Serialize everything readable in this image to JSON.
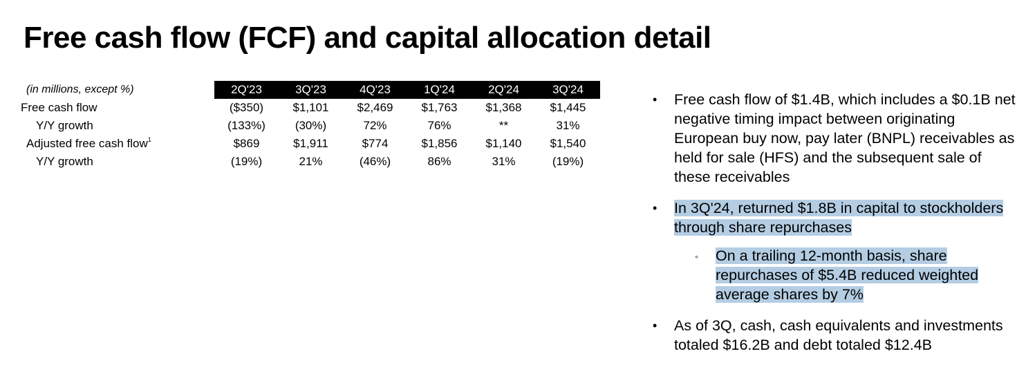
{
  "title": "Free cash flow (FCF) and capital allocation detail",
  "table": {
    "corner_label": "(in millions, except %)",
    "periods": [
      "2Q'23",
      "3Q'23",
      "4Q'23",
      "1Q'24",
      "2Q'24",
      "3Q'24"
    ],
    "rows": [
      {
        "label": "Free cash flow",
        "values": [
          "($350)",
          "$1,101",
          "$2,469",
          "$1,763",
          "$1,368",
          "$1,445"
        ]
      },
      {
        "label": "Y/Y growth",
        "values": [
          "(133%)",
          "(30%)",
          "72%",
          "76%",
          "**",
          "31%"
        ]
      },
      {
        "label": "Adjusted free cash flow",
        "footnote": "1",
        "values": [
          "$869",
          "$1,911",
          "$774",
          "$1,856",
          "$1,140",
          "$1,540"
        ]
      },
      {
        "label": "Y/Y growth",
        "values": [
          "(19%)",
          "21%",
          "(46%)",
          "86%",
          "31%",
          "(19%)"
        ]
      }
    ]
  },
  "bullets": {
    "b1": "Free cash flow of $1.4B, which includes a $0.1B net negative timing impact between originating European buy now, pay later (BNPL) receivables as held for sale (HFS) and the subsequent sale of these receivables",
    "b2": "In 3Q'24, returned $1.8B in capital to stockholders through share repurchases",
    "b2_sub": "On a trailing 12-month basis, share repurchases of $5.4B reduced weighted average shares by 7%",
    "b3": "As of 3Q, cash, cash equivalents and investments totaled $16.2B and debt totaled $12.4B"
  },
  "colors": {
    "header_bg": "#000000",
    "highlight": "#b4cde3"
  }
}
